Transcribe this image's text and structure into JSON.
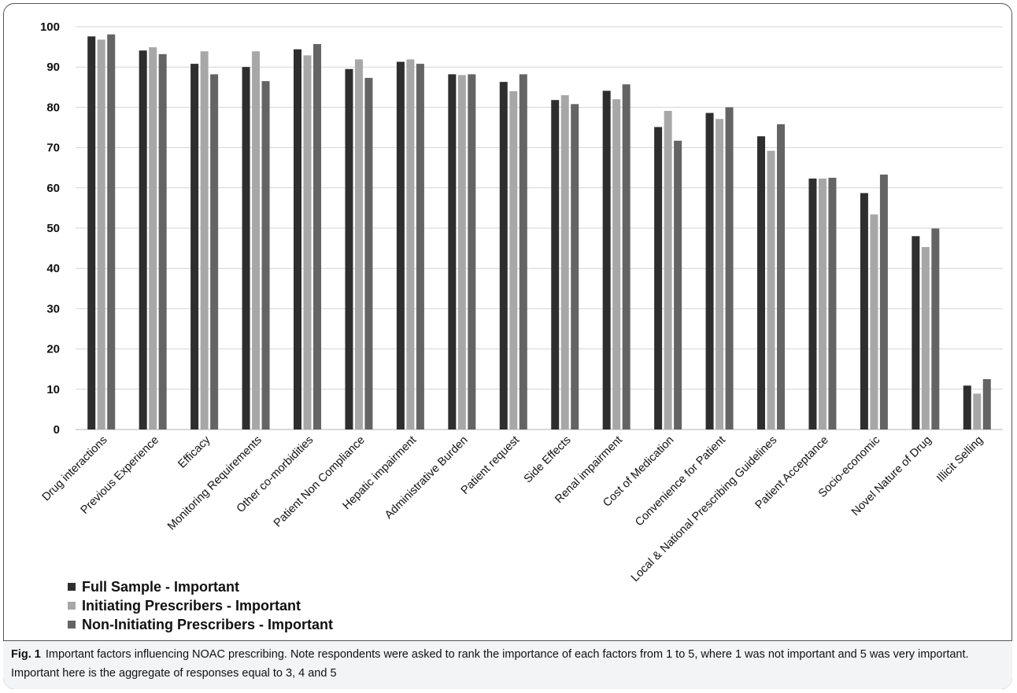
{
  "chart_data": {
    "type": "bar",
    "categories": [
      "Drug interactions",
      "Previous Experience",
      "Efficacy",
      "Monitoring Requirements",
      "Other co-morbidities",
      "Patient Non Compliance",
      "Hepatic impairment",
      "Administrative Burden",
      "Patient request",
      "Side Effects",
      "Renal impairment",
      "Cost of Medication",
      "Convenience for Patient",
      "Local & National Prescribing Guidelines",
      "Patient Acceptance",
      "Socio-economic",
      "Novel Nature of Drug",
      "Illicit Selling"
    ],
    "series": [
      {
        "name": "Full Sample - Important",
        "color": "#2e2e2e",
        "values": [
          97.6,
          94.1,
          90.8,
          90.0,
          94.4,
          89.5,
          91.3,
          88.2,
          86.3,
          81.8,
          84.1,
          75.1,
          78.6,
          72.8,
          62.3,
          58.7,
          48.0,
          10.9
        ]
      },
      {
        "name": "Initiating Prescribers - Important",
        "color": "#a7a7a7",
        "values": [
          96.8,
          94.9,
          93.9,
          93.9,
          92.9,
          91.9,
          91.9,
          88.0,
          84.0,
          83.0,
          82.0,
          79.1,
          77.1,
          69.2,
          62.3,
          53.4,
          45.3,
          8.9
        ]
      },
      {
        "name": "Non-Initiating Prescribers - Important",
        "color": "#646464",
        "values": [
          98.1,
          93.2,
          88.2,
          86.5,
          95.7,
          87.3,
          90.8,
          88.2,
          88.2,
          80.8,
          85.7,
          71.7,
          80.0,
          75.8,
          62.5,
          63.3,
          49.9,
          12.5
        ]
      }
    ],
    "ylim": [
      0,
      100
    ],
    "yticks": [
      0,
      10,
      20,
      30,
      40,
      50,
      60,
      70,
      80,
      90,
      100
    ],
    "grid": true,
    "legend_position": "bottom-left"
  },
  "legend": {
    "items": [
      "Full Sample - Important",
      "Initiating Prescribers - Important",
      "Non-Initiating Prescribers - Important"
    ]
  },
  "caption": {
    "label": "Fig. 1",
    "text": "Important factors influencing NOAC prescribing. Note respondents were asked to rank the importance of each factors from 1 to 5, where 1 was not important and 5 was very important. Important here is the aggregate of responses equal to 3, 4 and 5"
  }
}
